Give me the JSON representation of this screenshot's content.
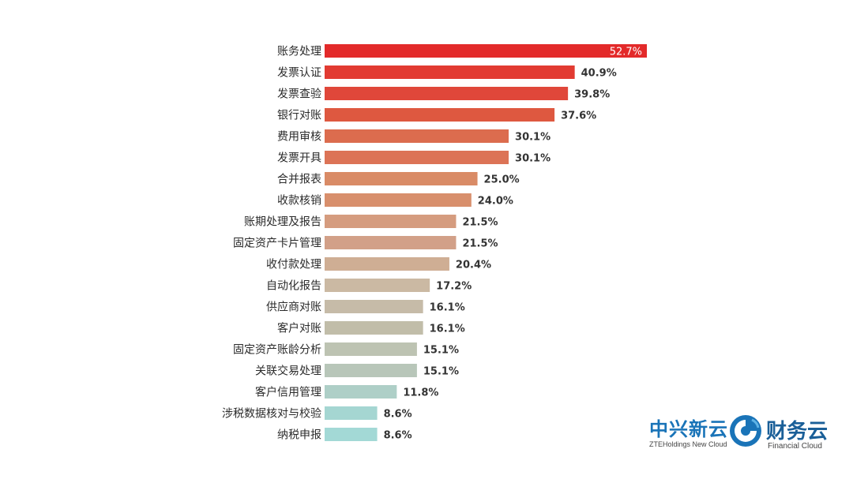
{
  "chart_data": {
    "type": "bar",
    "orientation": "horizontal",
    "title": "",
    "xlabel": "",
    "ylabel": "",
    "unit": "%",
    "xlim": [
      0,
      52.7
    ],
    "grid": false,
    "legend": "none",
    "categories": [
      "账务处理",
      "发票认证",
      "发票查验",
      "银行对账",
      "费用审核",
      "发票开具",
      "合并报表",
      "收款核销",
      "账期处理及报告",
      "固定资产卡片管理",
      "收付款处理",
      "自动化报告",
      "供应商对账",
      "客户对账",
      "固定资产账龄分析",
      "关联交易处理",
      "客户信用管理",
      "涉税数据核对与校验",
      "纳税申报"
    ],
    "values": [
      52.7,
      40.9,
      39.8,
      37.6,
      30.1,
      30.1,
      25.0,
      24.0,
      21.5,
      21.5,
      20.4,
      17.2,
      16.1,
      16.1,
      15.1,
      15.1,
      11.8,
      8.6,
      8.6
    ],
    "value_labels": [
      "52.7%",
      "40.9%",
      "39.8%",
      "37.6%",
      "30.1%",
      "30.1%",
      "25.0%",
      "24.0%",
      "21.5%",
      "21.5%",
      "20.4%",
      "17.2%",
      "16.1%",
      "16.1%",
      "15.1%",
      "15.1%",
      "11.8%",
      "8.6%",
      "8.6%"
    ],
    "bar_colors": [
      "#e32a2a",
      "#e23b32",
      "#e0473a",
      "#de5840",
      "#dc6c4e",
      "#dc7356",
      "#d98b66",
      "#d88f6c",
      "#d59c7f",
      "#d2a088",
      "#cfae94",
      "#cbb9a3",
      "#c6bba8",
      "#c1bda9",
      "#bdc3b2",
      "#b8c6b9",
      "#aecfc7",
      "#a5d6d2",
      "#a3d9d6"
    ]
  },
  "logo": {
    "zte_cn": "中兴新云",
    "zte_en": "ZTEHoldings New Cloud",
    "fc_cn": "财务云",
    "fc_en": "Financial Cloud",
    "primary_color": "#1a74b8",
    "secondary_color": "#1a5f98"
  }
}
